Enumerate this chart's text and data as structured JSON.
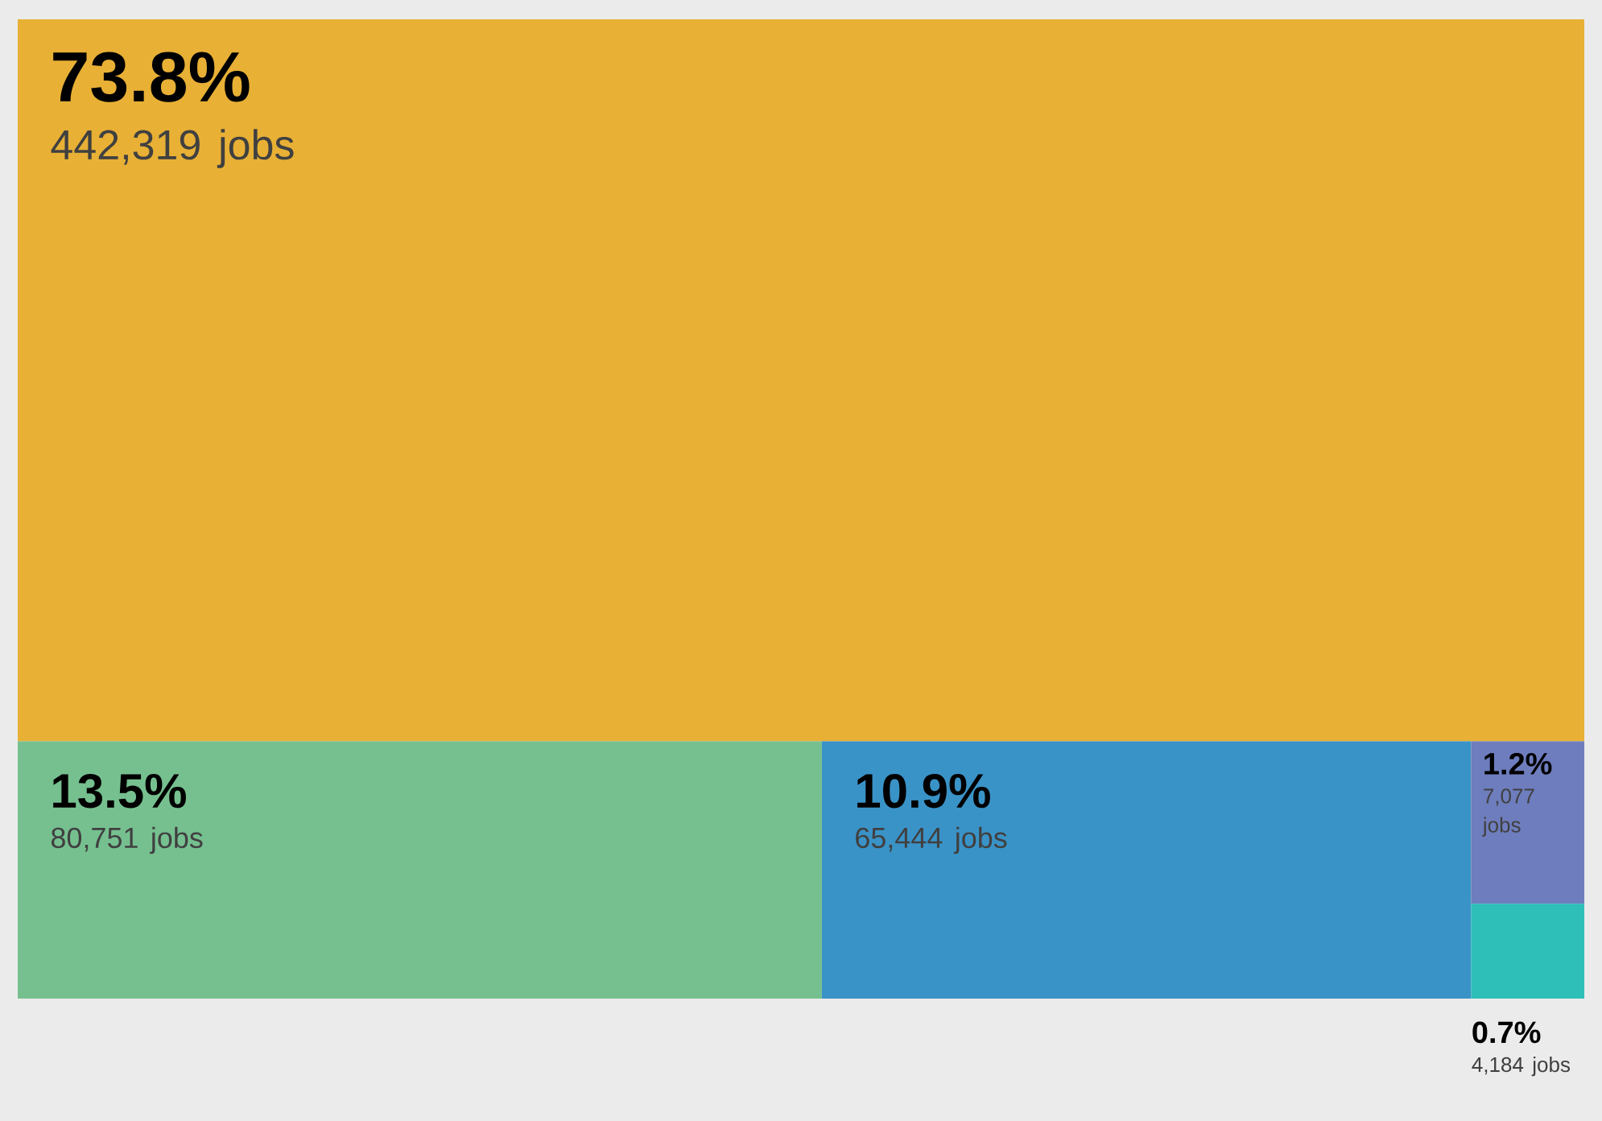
{
  "chart_data": {
    "type": "other",
    "categories": [
      null,
      null,
      null,
      null,
      null
    ],
    "values": [
      73.8,
      13.5,
      10.9,
      1.2,
      0.7
    ],
    "value_labels": [
      "73.8%",
      "13.5%",
      "10.9%",
      "1.2%",
      "0.7%"
    ],
    "annotations": [
      "442,319 jobs",
      "80,751 jobs",
      "65,444 jobs",
      "7,077 jobs",
      "4,184 jobs"
    ],
    "colors": [
      "#e8b035",
      "#76c090",
      "#3a93c7",
      "#6e7dbd",
      "#2ebfb8"
    ]
  }
}
